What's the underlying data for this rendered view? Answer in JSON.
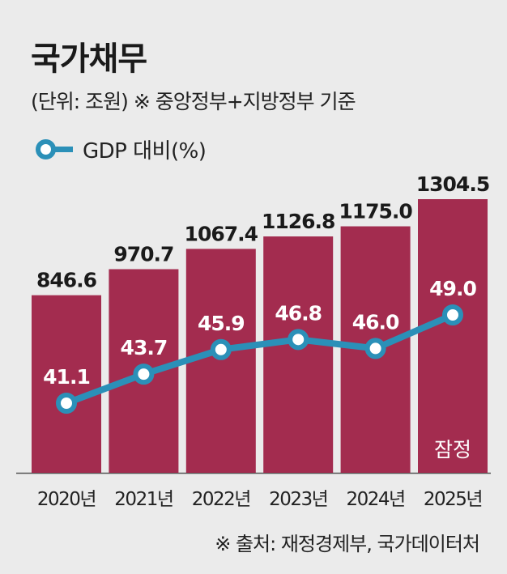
{
  "chart_data": {
    "type": "bar+line",
    "title": "국가채무",
    "subtitle": "(단위: 조원) ※ 중앙정부+지방정부 기준",
    "categories": [
      "2020년",
      "2021년",
      "2022년",
      "2023년",
      "2024년",
      "2025년"
    ],
    "series": [
      {
        "type": "bar",
        "values": [
          846.6,
          970.7,
          1067.4,
          1126.8,
          1175.0,
          1304.5
        ],
        "labels": [
          "846.6",
          "970.7",
          "1067.4",
          "1126.8",
          "1175.0",
          "1304.5"
        ],
        "color": "#a32c4f"
      },
      {
        "name": "GDP 대비(%)",
        "type": "line",
        "values": [
          41.1,
          43.7,
          45.9,
          46.8,
          46.0,
          49.0
        ],
        "labels": [
          "41.1",
          "43.7",
          "45.9",
          "46.8",
          "46.0",
          "49.0"
        ],
        "color": "#2b90b8"
      }
    ],
    "annotation": "잠정",
    "legend": "top-left",
    "grid": false
  },
  "source": "※ 출처: 재정경제부, 국가데이터처"
}
